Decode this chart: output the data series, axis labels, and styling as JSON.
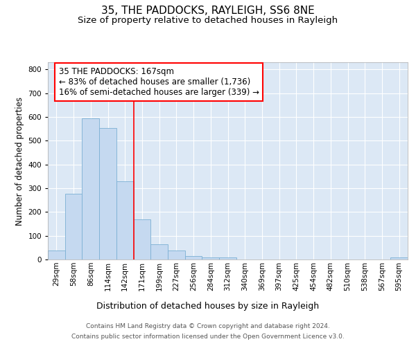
{
  "title": "35, THE PADDOCKS, RAYLEIGH, SS6 8NE",
  "subtitle": "Size of property relative to detached houses in Rayleigh",
  "xlabel": "Distribution of detached houses by size in Rayleigh",
  "ylabel": "Number of detached properties",
  "bar_labels": [
    "29sqm",
    "58sqm",
    "86sqm",
    "114sqm",
    "142sqm",
    "171sqm",
    "199sqm",
    "227sqm",
    "256sqm",
    "284sqm",
    "312sqm",
    "340sqm",
    "369sqm",
    "397sqm",
    "425sqm",
    "454sqm",
    "482sqm",
    "510sqm",
    "538sqm",
    "567sqm",
    "595sqm"
  ],
  "bar_values": [
    38,
    278,
    595,
    552,
    328,
    170,
    65,
    38,
    15,
    10,
    10,
    0,
    0,
    0,
    0,
    0,
    0,
    0,
    0,
    0,
    10
  ],
  "bar_color": "#c5d9f0",
  "bar_edge_color": "#7bafd4",
  "vline_pos": 5.0,
  "vline_color": "red",
  "annotation_text": "35 THE PADDOCKS: 167sqm\n← 83% of detached houses are smaller (1,736)\n16% of semi-detached houses are larger (339) →",
  "annotation_box_facecolor": "white",
  "annotation_box_edgecolor": "red",
  "ylim": [
    0,
    830
  ],
  "yticks": [
    0,
    100,
    200,
    300,
    400,
    500,
    600,
    700,
    800
  ],
  "background_color": "#dce8f5",
  "footer_line1": "Contains HM Land Registry data © Crown copyright and database right 2024.",
  "footer_line2": "Contains public sector information licensed under the Open Government Licence v3.0.",
  "title_fontsize": 11,
  "subtitle_fontsize": 9.5,
  "xlabel_fontsize": 9,
  "ylabel_fontsize": 8.5,
  "tick_fontsize": 7.5,
  "annotation_fontsize": 8.5,
  "footer_fontsize": 6.5
}
